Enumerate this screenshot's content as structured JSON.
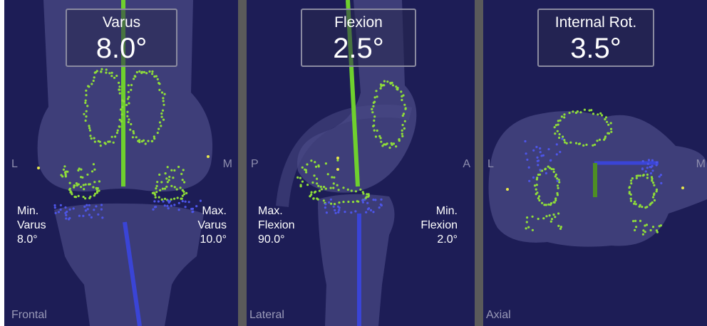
{
  "panels": [
    {
      "view_name": "Frontal",
      "measure": {
        "title": "Varus",
        "value": "8.0°"
      },
      "orientation": {
        "left": "L",
        "right": "M"
      },
      "limit_left": {
        "line1": "Min.",
        "line2": "Varus",
        "line3": "8.0°"
      },
      "limit_right": {
        "line1": "Max.",
        "line2": "Varus",
        "line3": "10.0°"
      }
    },
    {
      "view_name": "Lateral",
      "measure": {
        "title": "Flexion",
        "value": "2.5°"
      },
      "orientation": {
        "left": "P",
        "right": "A"
      },
      "limit_left": {
        "line1": "Max.",
        "line2": "Flexion",
        "line3": "90.0°"
      },
      "limit_right": {
        "line1": "Min.",
        "line2": "Flexion",
        "line3": "2.0°"
      }
    },
    {
      "view_name": "Axial",
      "measure": {
        "title": "Internal Rot.",
        "value": "3.5°"
      },
      "orientation": {
        "left": "L",
        "right": "M"
      }
    }
  ],
  "colors": {
    "background": "#1d1d56",
    "bone": "#4a4a86",
    "femoral_axis": "#6fd02e",
    "tibial_axis": "#3a44d6",
    "femur_points": "#8fdd3a",
    "tibia_points": "#4d55e8",
    "landmark": "#e8e84a",
    "divider": "#5a5a5a"
  }
}
